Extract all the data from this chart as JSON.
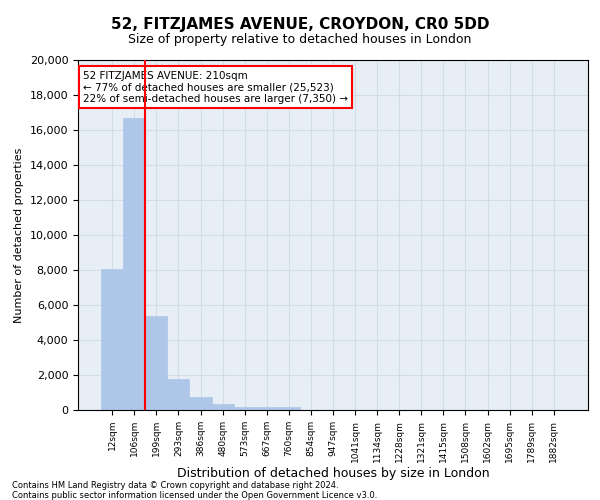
{
  "title": "52, FITZJAMES AVENUE, CROYDON, CR0 5DD",
  "subtitle": "Size of property relative to detached houses in London",
  "xlabel": "Distribution of detached houses by size in London",
  "ylabel": "Number of detached properties",
  "categories": [
    "12sqm",
    "106sqm",
    "199sqm",
    "293sqm",
    "386sqm",
    "480sqm",
    "573sqm",
    "667sqm",
    "760sqm",
    "854sqm",
    "947sqm",
    "1041sqm",
    "1134sqm",
    "1228sqm",
    "1321sqm",
    "1415sqm",
    "1508sqm",
    "1602sqm",
    "1695sqm",
    "1789sqm",
    "1882sqm"
  ],
  "values": [
    8050,
    16700,
    5350,
    1800,
    750,
    350,
    200,
    175,
    175,
    0,
    0,
    0,
    0,
    0,
    0,
    0,
    0,
    0,
    0,
    0,
    0
  ],
  "bar_color": "#aec6e8",
  "bar_edgecolor": "#aec6e8",
  "vline_color": "red",
  "vline_pos": 1.5,
  "ylim": [
    0,
    20000
  ],
  "yticks": [
    0,
    2000,
    4000,
    6000,
    8000,
    10000,
    12000,
    14000,
    16000,
    18000,
    20000
  ],
  "annotation_title": "52 FITZJAMES AVENUE: 210sqm",
  "annotation_line1": "← 77% of detached houses are smaller (25,523)",
  "annotation_line2": "22% of semi-detached houses are larger (7,350) →",
  "annotation_box_color": "red",
  "footer_line1": "Contains HM Land Registry data © Crown copyright and database right 2024.",
  "footer_line2": "Contains public sector information licensed under the Open Government Licence v3.0.",
  "grid_color": "#d0dce8",
  "background_color": "#e8eef5",
  "title_fontsize": 11,
  "subtitle_fontsize": 9,
  "ylabel_fontsize": 8,
  "xlabel_fontsize": 9
}
